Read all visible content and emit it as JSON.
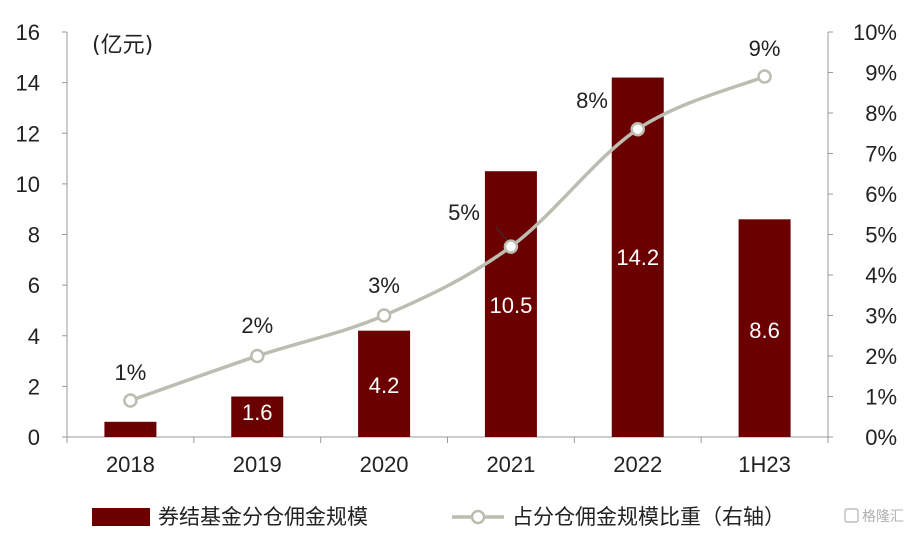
{
  "chart_data": {
    "type": "bar",
    "categories": [
      "2018",
      "2019",
      "2020",
      "2021",
      "2022",
      "1H23"
    ],
    "unit_label": "(亿元)",
    "ylim_left": [
      0,
      16
    ],
    "left_ticks": [
      "0",
      "2",
      "4",
      "6",
      "8",
      "10",
      "12",
      "14",
      "16"
    ],
    "ylim_right": [
      0,
      10
    ],
    "right_ticks": [
      "0%",
      "1%",
      "2%",
      "3%",
      "4%",
      "5%",
      "6%",
      "7%",
      "8%",
      "9%",
      "10%"
    ],
    "series": [
      {
        "name": "券结基金分仓佣金规模",
        "type": "bar",
        "axis": "left",
        "color": "#6b0000",
        "values": [
          0.6,
          1.6,
          4.2,
          10.5,
          14.2,
          8.6
        ],
        "labels": [
          "",
          "1.6",
          "4.2",
          "10.5",
          "14.2",
          "8.6"
        ]
      },
      {
        "name": "占分仓佣金规模比重（右轴）",
        "type": "line",
        "axis": "right",
        "color": "#bcbcb0",
        "values": [
          0.9,
          2.0,
          3.0,
          4.7,
          7.6,
          8.9
        ],
        "labels": [
          "1%",
          "2%",
          "3%",
          "5%",
          "8%",
          "9%"
        ]
      }
    ],
    "grid": false,
    "legend_position": "bottom"
  },
  "watermark": {
    "text": "格隆汇"
  }
}
